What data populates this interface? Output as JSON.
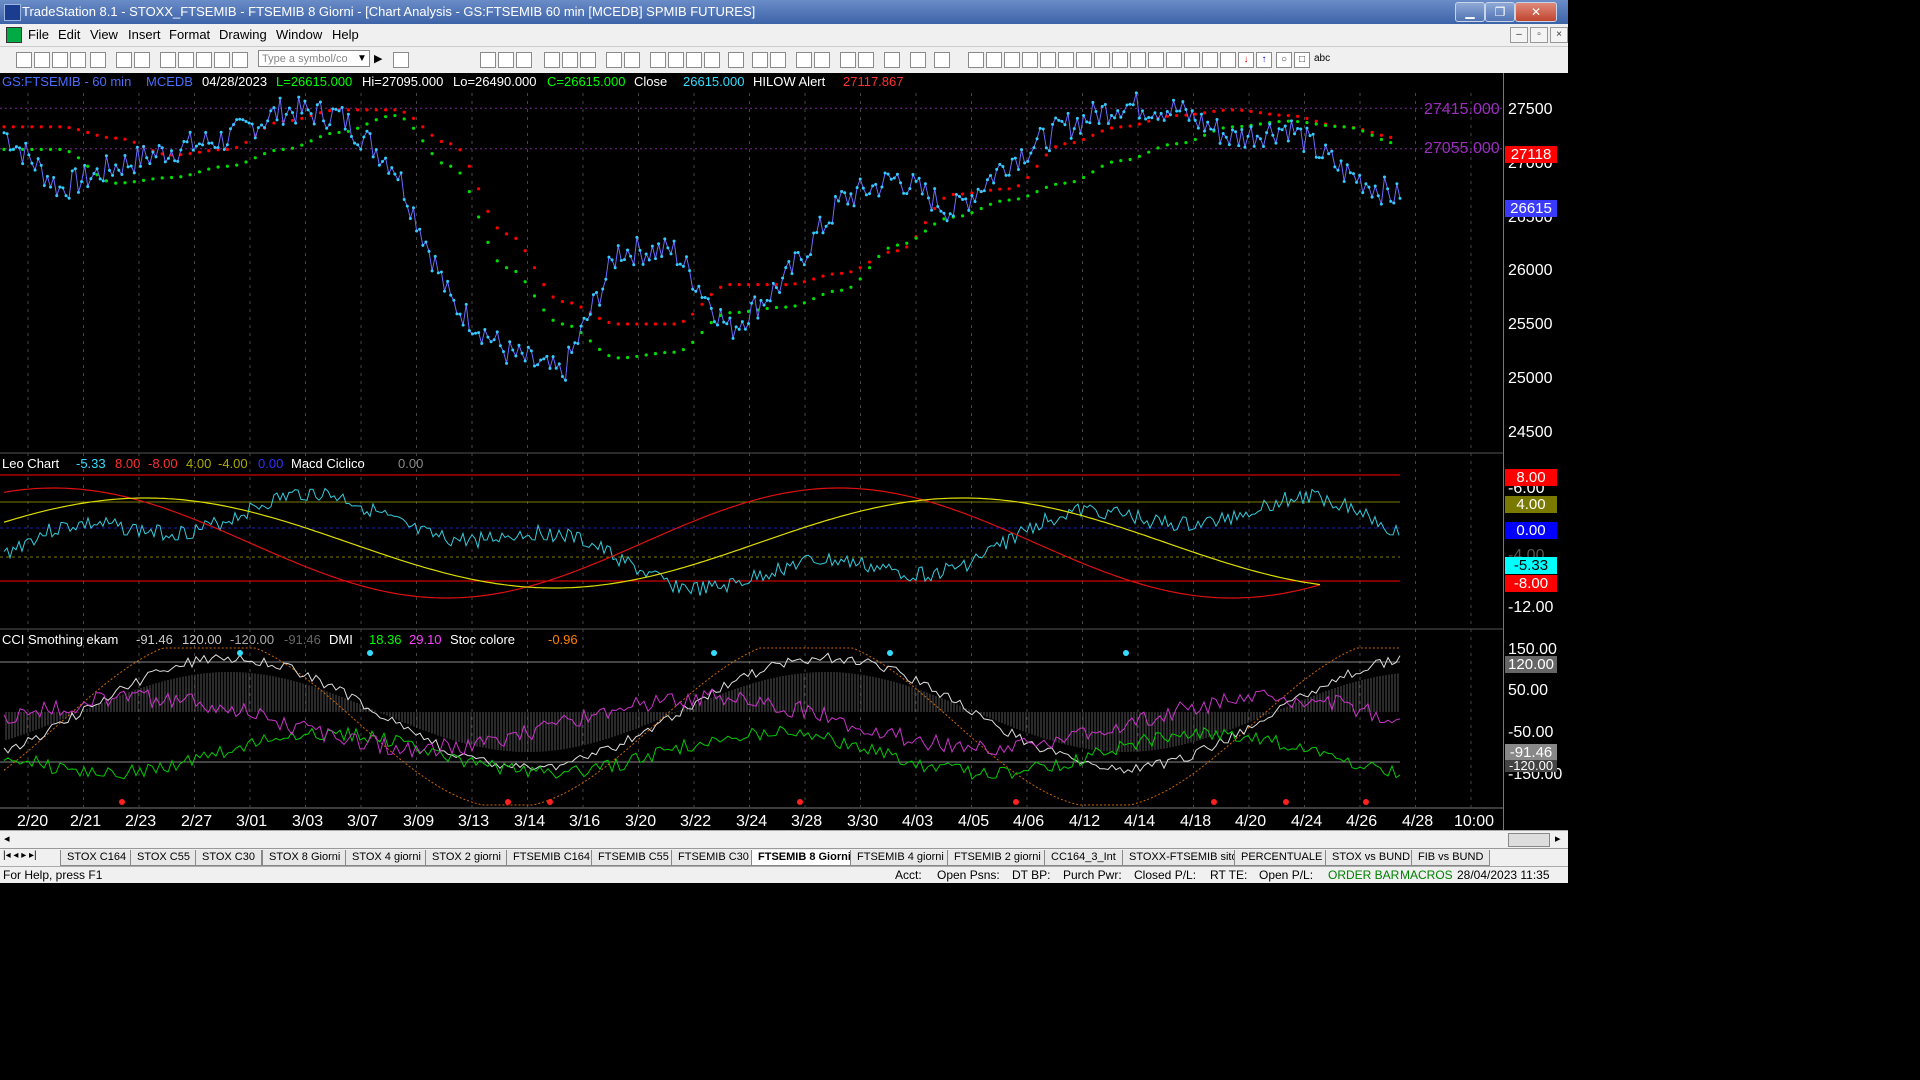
{
  "window": {
    "title": "TradeStation 8.1 - STOXX_FTSEMIB - FTSEMIB  8 Giorni - [Chart Analysis - GS:FTSEMIB  60 min  [MCEDB] SPMIB FUTURES]",
    "min": "▁",
    "max": "❐",
    "close": "✕"
  },
  "menu": [
    "File",
    "Edit",
    "View",
    "Insert",
    "Format",
    "Drawing",
    "Window",
    "Help"
  ],
  "menu_ctrl": [
    "–",
    "▫",
    "×"
  ],
  "toolbar": {
    "symbol_placeholder": "Type a symbol/co",
    "abc": "abc"
  },
  "price_header": {
    "symbol": "GS:FTSEMIB - 60 min",
    "source": "MCEDB",
    "date": "04/28/2023",
    "last": "L=26615.000",
    "high": "Hi=27095.000",
    "low": "Lo=26490.000",
    "close_val": "C=26615.000",
    "close_label": "Close",
    "close_num": "26615.000",
    "hilow_label": "HILOW Alert",
    "hilow_val": "27117.867"
  },
  "leo_header": {
    "name": "Leo Chart",
    "v1": "-5.33",
    "v2": "8.00",
    "v3": "-8.00",
    "v4": "4.00",
    "v5": "-4.00",
    "v6": "0.00",
    "macd_name": "Macd Ciclico",
    "macd_val": "0.00"
  },
  "cci_header": {
    "name": "CCI Smothing ekam",
    "v1": "-91.46",
    "v2": "120.00",
    "v3": "-120.00",
    "v4": "-91.46",
    "dmi": "DMI",
    "dmi1": "18.36",
    "dmi2": "29.10",
    "stoc": "Stoc colore",
    "stoc_val": "-0.96"
  },
  "price_axis": [
    "27500",
    "27000",
    "26500",
    "26000",
    "25500",
    "25000",
    "24500"
  ],
  "price_lines": [
    {
      "label": "27415.000",
      "value": 27415
    },
    {
      "label": "27055.000",
      "value": 27055
    }
  ],
  "price_badges": [
    {
      "label": "27118",
      "value": 27118,
      "bg": "#ff0000",
      "fg": "#ffffff"
    },
    {
      "label": "26615",
      "value": 26615,
      "bg": "#3a3aff",
      "fg": "#ffffff"
    }
  ],
  "leo_axis": {
    "top": "-6.00",
    "mid": "-4.00",
    "bottom": "-12.00"
  },
  "leo_badges": [
    {
      "label": "8.00",
      "bg": "#ff0000",
      "fg": "#ffffff"
    },
    {
      "label": "4.00",
      "bg": "#7a7a00",
      "fg": "#ffffff"
    },
    {
      "label": "0.00",
      "bg": "#0000ff",
      "fg": "#ffffff"
    },
    {
      "label": "-5.33",
      "bg": "#00ffff",
      "fg": "#000000"
    },
    {
      "label": "-8.00",
      "bg": "#ff0000",
      "fg": "#ffffff"
    }
  ],
  "cci_axis": [
    "150.00",
    "50.00",
    "-50.00",
    "-150.00"
  ],
  "cci_badges": [
    {
      "label": "120.00",
      "bg": "#666666",
      "fg": "#ffffff"
    },
    {
      "label": "-91.46",
      "bg": "#888888",
      "fg": "#ffffff"
    },
    {
      "label": "-120.00",
      "bg": "#444444",
      "fg": "#ffffff"
    }
  ],
  "x_labels": [
    "2/20",
    "2/21",
    "2/23",
    "2/27",
    "3/01",
    "3/03",
    "3/07",
    "3/09",
    "3/13",
    "3/14",
    "3/16",
    "3/20",
    "3/22",
    "3/24",
    "3/28",
    "3/30",
    "4/03",
    "4/05",
    "4/06",
    "4/12",
    "4/14",
    "4/18",
    "4/20",
    "4/24",
    "4/26",
    "4/28",
    "10:00"
  ],
  "tabs": [
    {
      "label": "STOX C164",
      "active": false
    },
    {
      "label": "STOX C55",
      "active": false
    },
    {
      "label": "STOX  C30",
      "active": false
    },
    {
      "label": "STOX  8 Giorni",
      "active": false
    },
    {
      "label": "STOX 4 giorni",
      "active": false
    },
    {
      "label": "STOX  2 giorni",
      "active": false
    },
    {
      "label": "FTSEMIB C164",
      "active": false
    },
    {
      "label": "FTSEMIB C55",
      "active": false
    },
    {
      "label": "FTSEMIB C30",
      "active": false
    },
    {
      "label": "FTSEMIB  8 Giorni",
      "active": true
    },
    {
      "label": "FTSEMIB  4 giorni",
      "active": false
    },
    {
      "label": "FTSEMIB  2 giorni",
      "active": false
    },
    {
      "label": "CC164_3_Int",
      "active": false
    },
    {
      "label": "STOXX-FTSEMIB sito",
      "active": false
    },
    {
      "label": "PERCENTUALE",
      "active": false
    },
    {
      "label": "STOX vs BUND",
      "active": false
    },
    {
      "label": "FIB vs BUND",
      "active": false
    }
  ],
  "status": {
    "help": "For Help, press F1",
    "acct": "Acct:",
    "open_psns": "Open Psns:",
    "dtbp": "DT BP:",
    "purch": "Purch Pwr:",
    "closed": "Closed P/L:",
    "rtte": "RT TE:",
    "openpl": "Open P/L:",
    "orderbar": "ORDER BAR",
    "macros": "MACROS",
    "datetime": "28/04/2023 11:35"
  },
  "chart_data": {
    "type": "line",
    "x_labels": [
      "2/20",
      "2/21",
      "2/23",
      "2/27",
      "3/01",
      "3/03",
      "3/07",
      "3/09",
      "3/13",
      "3/14",
      "3/16",
      "3/20",
      "3/22",
      "3/24",
      "3/28",
      "3/30",
      "4/03",
      "4/05",
      "4/06",
      "4/12",
      "4/14",
      "4/18",
      "4/20",
      "4/24",
      "4/26",
      "4/28"
    ],
    "price": [
      27200,
      26700,
      26900,
      27050,
      27150,
      27400,
      27350,
      26900,
      25700,
      25250,
      25050,
      26150,
      26150,
      25450,
      25900,
      26600,
      26800,
      26500,
      26950,
      27250,
      27450,
      27400,
      27150,
      27250,
      26850,
      26615
    ],
    "hilow_red": [
      27250,
      27250,
      27150,
      27000,
      27050,
      27300,
      27400,
      27400,
      27100,
      26300,
      25700,
      25500,
      25500,
      25850,
      25850,
      25950,
      26150,
      26650,
      26700,
      27100,
      27250,
      27350,
      27400,
      27350,
      27250,
      27150
    ],
    "hilow_green": [
      27050,
      27050,
      26750,
      26800,
      26900,
      27050,
      27200,
      27350,
      26900,
      26000,
      25500,
      25200,
      25250,
      25600,
      25650,
      25800,
      26200,
      26450,
      26600,
      26750,
      26950,
      27100,
      27250,
      27300,
      27250,
      27100
    ],
    "ylim": [
      24400,
      27550
    ],
    "series_colors": {
      "price": "#33ccff",
      "hilow_red": "#ff0000",
      "hilow_green": "#00dd00"
    }
  }
}
